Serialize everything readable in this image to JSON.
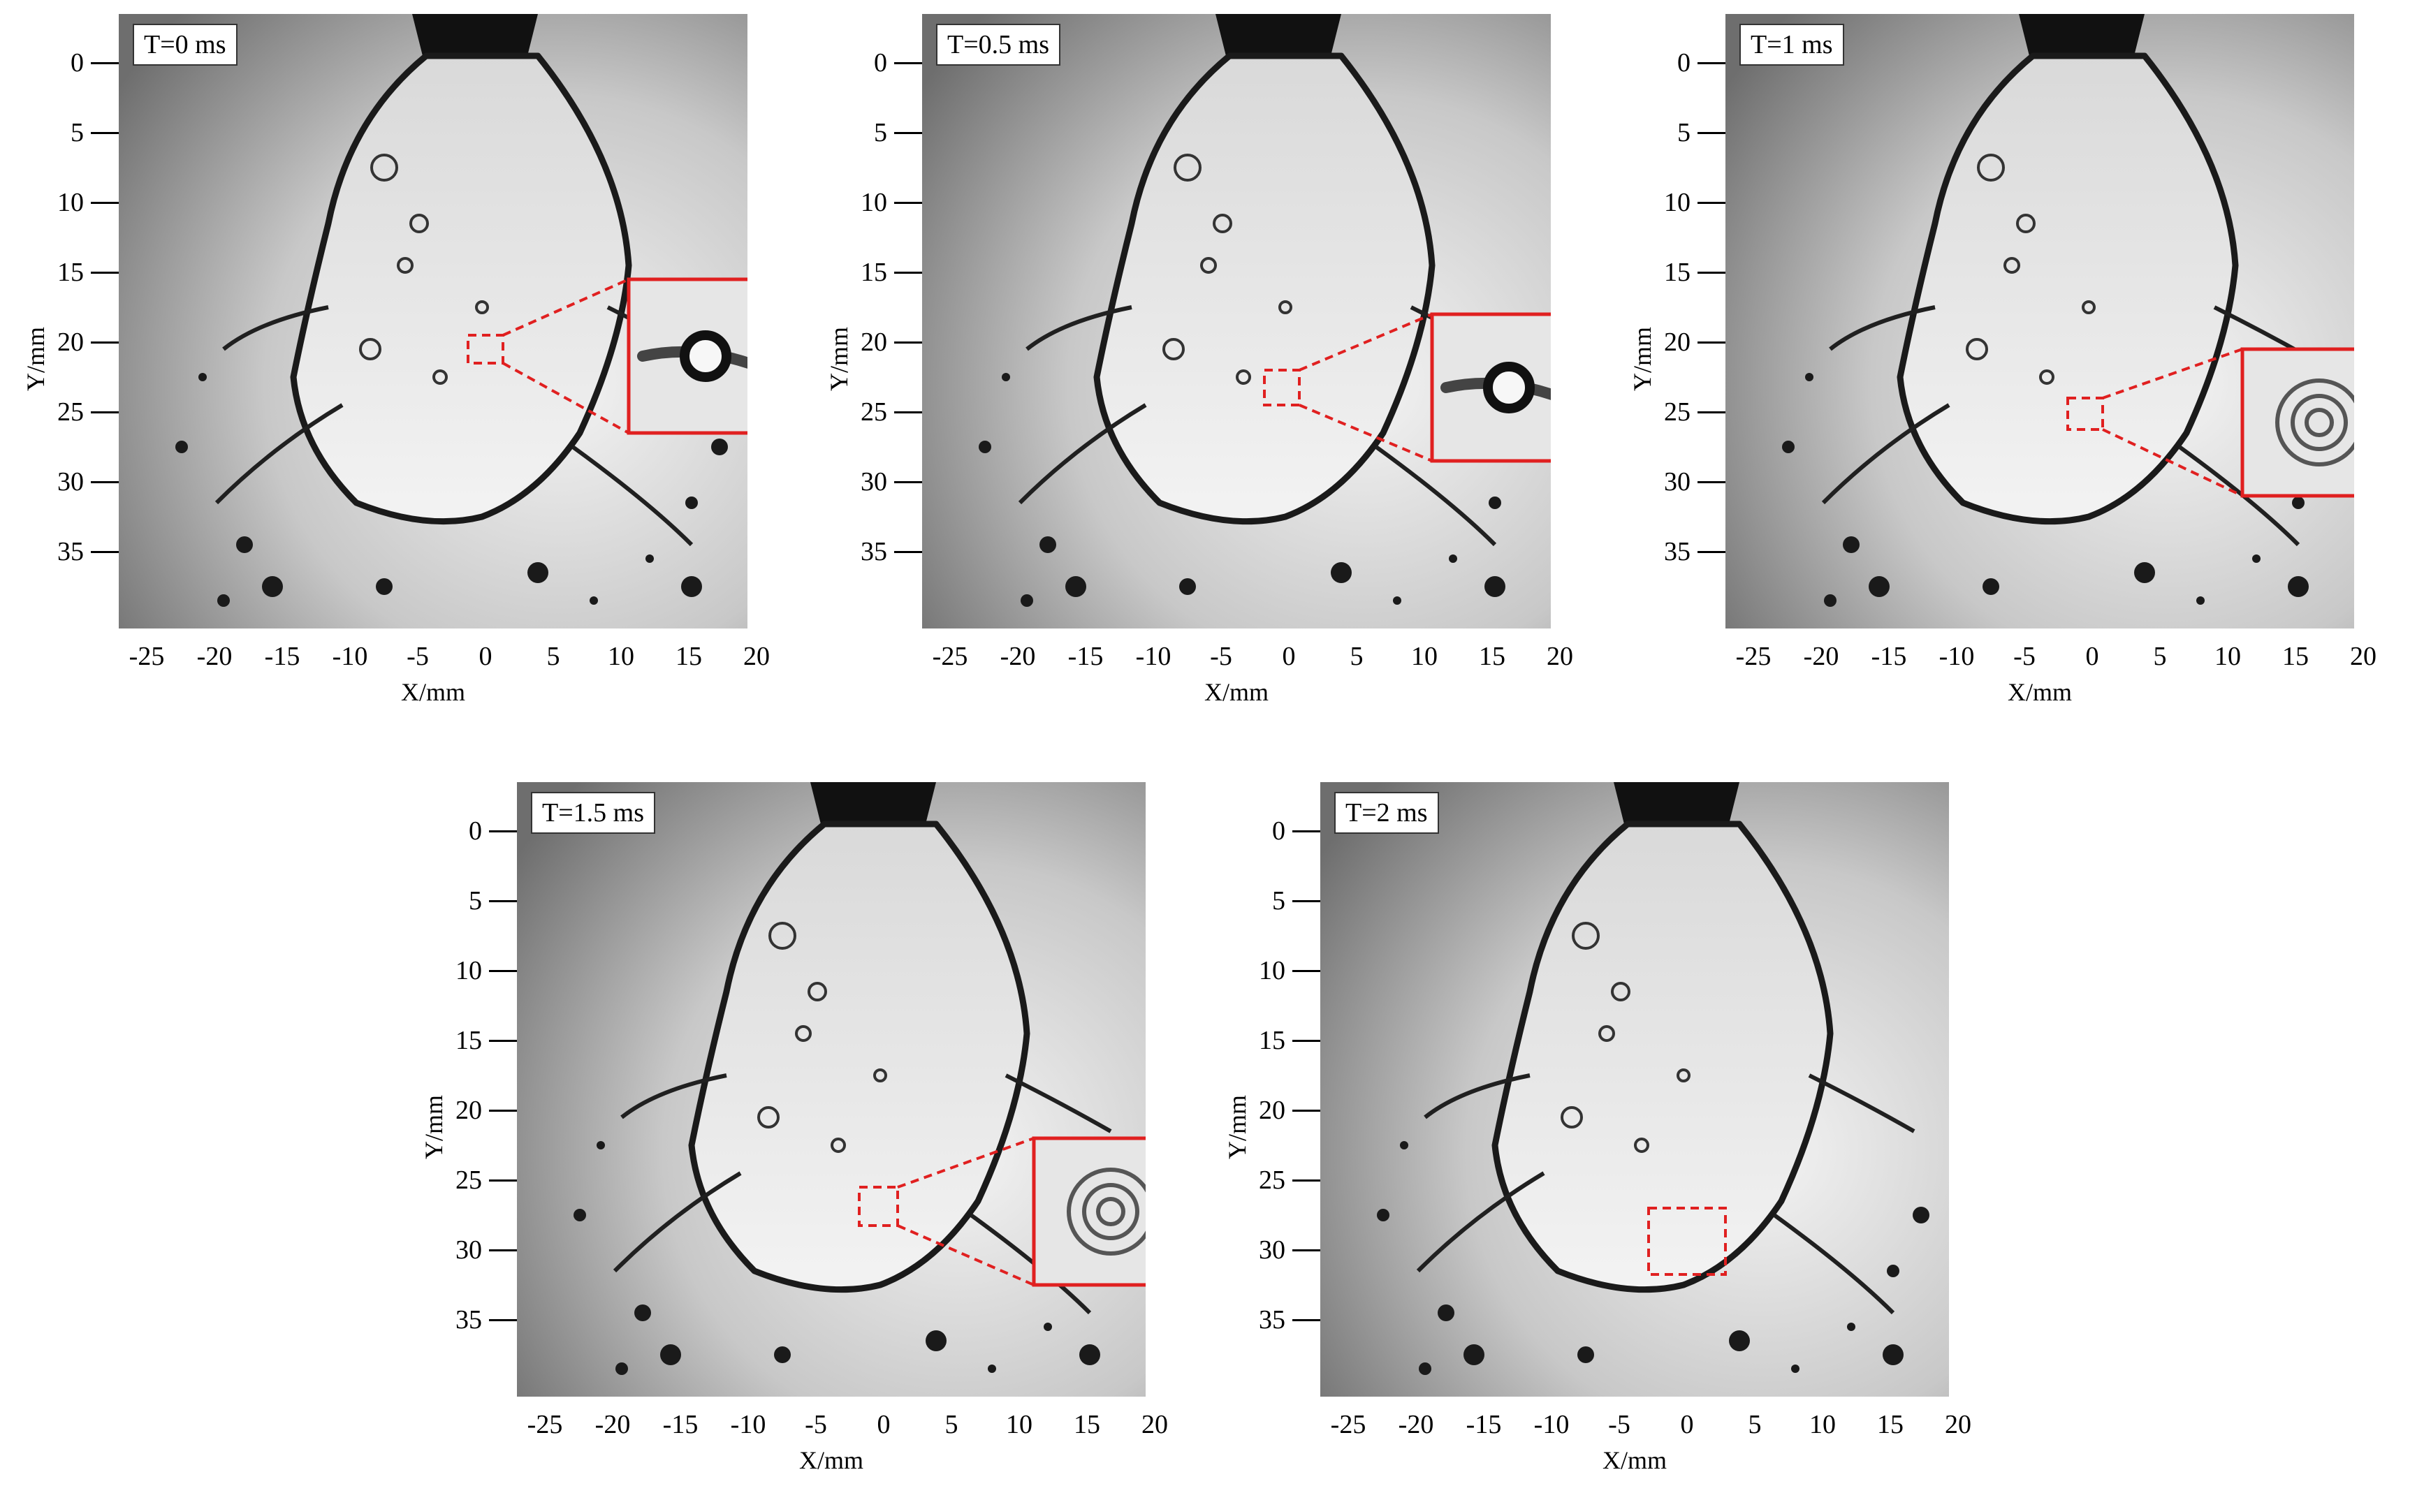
{
  "axes": {
    "xlabel": "X/mm",
    "ylabel": "Y/mm",
    "xticks": [
      "-25",
      "-20",
      "-15",
      "-10",
      "-5",
      "0",
      "5",
      "10",
      "15",
      "20"
    ],
    "yticks": [
      "0",
      "5",
      "10",
      "15",
      "20",
      "25",
      "30",
      "35"
    ]
  },
  "panels": [
    {
      "time": "T=0 ms"
    },
    {
      "time": "T=0.5 ms"
    },
    {
      "time": "T=1 ms"
    },
    {
      "time": "T=1.5 ms"
    },
    {
      "time": "T=2 ms"
    }
  ],
  "colors": {
    "highlight": "#e02020",
    "background_gray": "#9a9a9a",
    "jet_dark": "#111111"
  }
}
